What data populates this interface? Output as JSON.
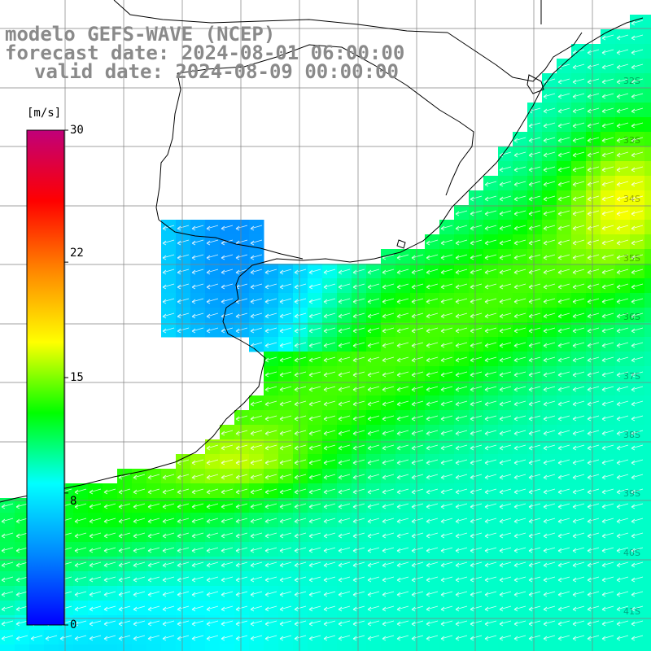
{
  "title": {
    "line1": "modelo GEFS-WAVE (NCEP)",
    "line2": "forecast date: 2024-08-01 06:00:00",
    "line3": "valid date: 2024-08-09 00:00:00"
  },
  "colorbar": {
    "unit": "[m/s]",
    "min": 0,
    "max": 30,
    "ticks": [
      "30",
      "22",
      "15",
      "8",
      "0"
    ],
    "tick_values": [
      30,
      22,
      15,
      8,
      0
    ],
    "colors": [
      "#0000ff",
      "#0088ff",
      "#00ffff",
      "#00ff00",
      "#ffff00",
      "#ff8800",
      "#ff0000",
      "#c0007a"
    ]
  },
  "latitude_labels": [
    "32S",
    "33S",
    "34S",
    "35S",
    "36S",
    "37S",
    "38S",
    "39S",
    "40S",
    "41S"
  ],
  "colors": {
    "land": "#ffffff",
    "coastline": "#000000",
    "grid": "#808080",
    "arrows": "#ffffff",
    "title": "#8a8a8a"
  }
}
